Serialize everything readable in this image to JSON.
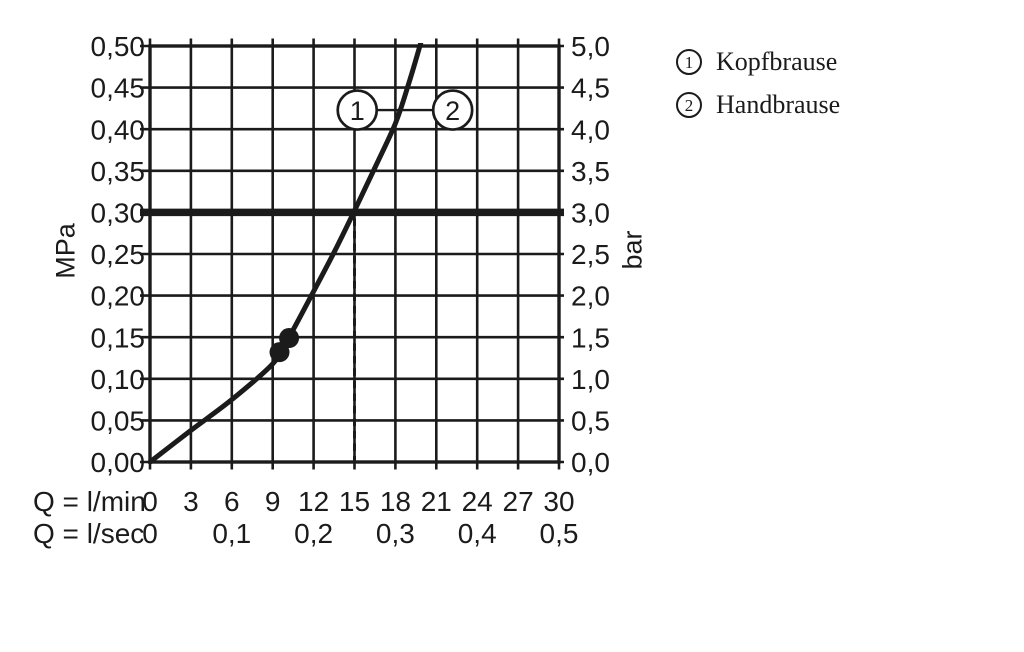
{
  "page": {
    "background": "#ffffff",
    "ink_color": "#1b1b1b"
  },
  "chart_data": {
    "type": "line",
    "title": "",
    "x_axis": {
      "xlim": [
        0,
        30
      ],
      "row1_label": "Q = l/min",
      "row1_ticks": [
        "0",
        "3",
        "6",
        "9",
        "12",
        "15",
        "18",
        "21",
        "24",
        "27",
        "30"
      ],
      "row2_label": "Q = l/sec",
      "row2_ticks": [
        {
          "text": "0",
          "q": 0
        },
        {
          "text": "0,1",
          "q": 6
        },
        {
          "text": "0,2",
          "q": 12
        },
        {
          "text": "0,3",
          "q": 18
        },
        {
          "text": "0,4",
          "q": 24
        },
        {
          "text": "0,5",
          "q": 30
        }
      ]
    },
    "y_axis_left": {
      "label": "MPa",
      "ylim": [
        0,
        0.5
      ],
      "ticks": [
        "0,50",
        "0,45",
        "0,40",
        "0,35",
        "0,30",
        "0,25",
        "0,20",
        "0,15",
        "0,10",
        "0,05",
        "0,00"
      ]
    },
    "y_axis_right": {
      "label": "bar",
      "ticks": [
        "5,0",
        "4,5",
        "4,0",
        "3,5",
        "3,0",
        "2,5",
        "2,0",
        "1,5",
        "1,0",
        "0,5",
        "0,0"
      ]
    },
    "grid": {
      "on": true,
      "x_step_lmin": 3,
      "y_step_mpa": 0.05
    },
    "series": [
      {
        "name": "flow-pressure-curve",
        "points": [
          [
            0,
            0
          ],
          [
            3,
            0.038
          ],
          [
            6,
            0.075
          ],
          [
            9,
            0.118
          ],
          [
            10.2,
            0.15
          ],
          [
            12,
            0.205
          ],
          [
            13.5,
            0.252
          ],
          [
            15,
            0.302
          ],
          [
            16.5,
            0.354
          ],
          [
            18,
            0.407
          ],
          [
            19,
            0.456
          ],
          [
            19.9,
            0.506
          ]
        ]
      }
    ],
    "markers": [
      {
        "q": 9.5,
        "p": 0.132
      },
      {
        "q": 10.2,
        "p": 0.149
      }
    ],
    "reference_line_mpa": 0.3,
    "dashed_line_lmin": 15,
    "callouts": [
      {
        "num": "1",
        "q": 15.2,
        "p": 0.423
      },
      {
        "num": "2",
        "q": 22.2,
        "p": 0.423
      }
    ],
    "legend": [
      {
        "num": "1",
        "label": "Kopfbrause"
      },
      {
        "num": "2",
        "label": "Handbrause"
      }
    ]
  }
}
